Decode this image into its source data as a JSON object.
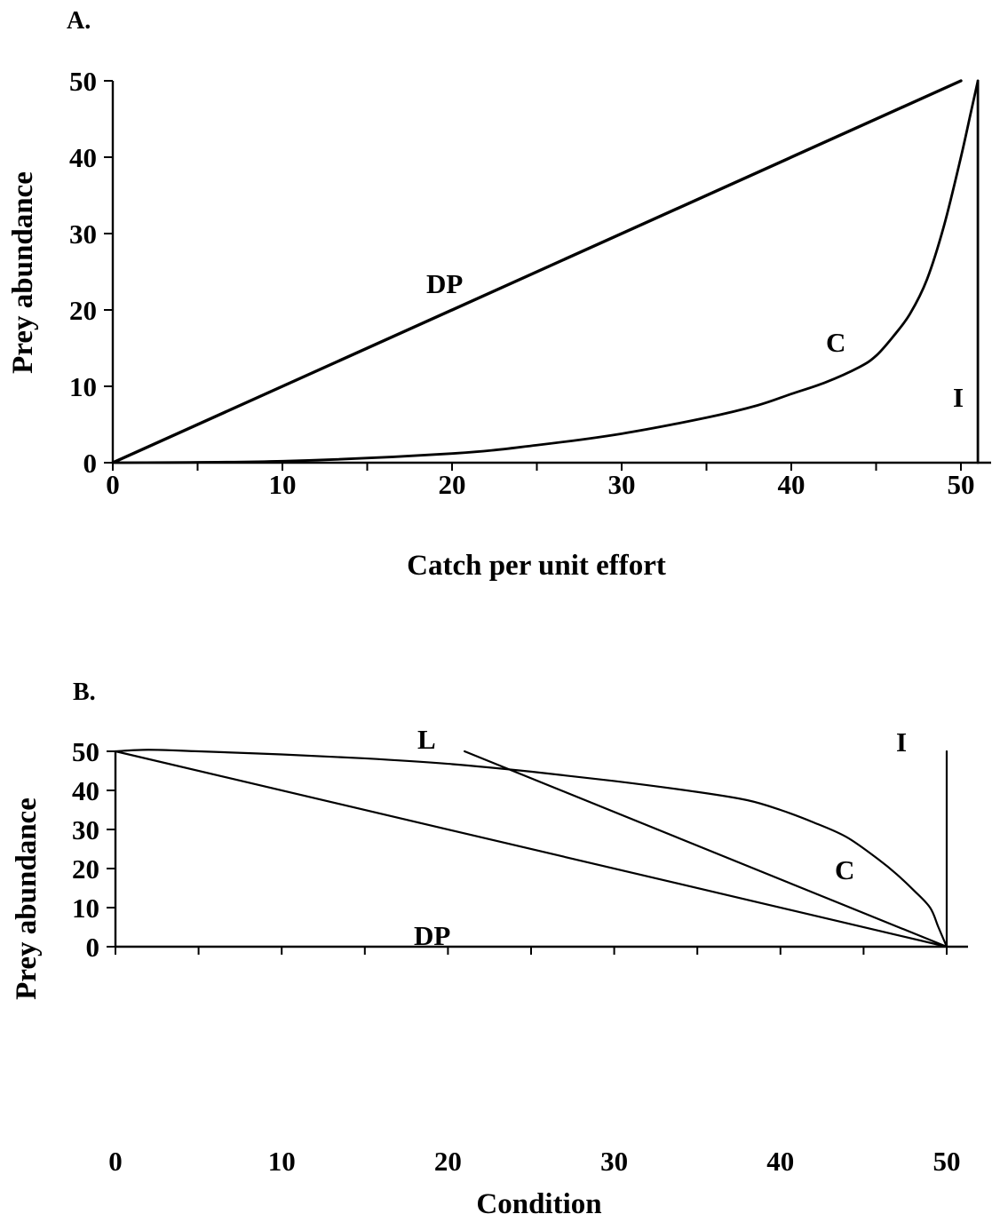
{
  "chart_data": [
    {
      "type": "line",
      "panel_label": "A.",
      "xlabel": "Catch per unit effort",
      "ylabel": "Prey abundance",
      "xlim": [
        0,
        50
      ],
      "ylim": [
        0,
        50
      ],
      "xticks": [
        0,
        10,
        20,
        30,
        40,
        50
      ],
      "yticks": [
        0,
        10,
        20,
        30,
        40,
        50
      ],
      "grid": false,
      "series": [
        {
          "name": "DP",
          "x": [
            0,
            50
          ],
          "y": [
            0,
            50
          ]
        },
        {
          "name": "C",
          "x": [
            0,
            10,
            20,
            25,
            30,
            35,
            38,
            40,
            42,
            44,
            45,
            46,
            47,
            48,
            49,
            50,
            50.6,
            51
          ],
          "y": [
            0,
            0.2,
            1.2,
            2.3,
            3.8,
            5.9,
            7.5,
            9.0,
            10.5,
            12.5,
            14.0,
            16.5,
            19.5,
            24.0,
            31.0,
            40.0,
            46.0,
            50.0
          ]
        },
        {
          "name": "I",
          "x": [
            51,
            51
          ],
          "y": [
            0,
            50
          ]
        }
      ]
    },
    {
      "type": "line",
      "panel_label": "B.",
      "xlabel": "Condition",
      "ylabel": "Prey abundance",
      "xlim": [
        0,
        50
      ],
      "ylim": [
        0,
        50
      ],
      "xticks": [
        0,
        10,
        20,
        30,
        40,
        50
      ],
      "yticks": [
        0,
        10,
        20,
        30,
        40,
        50
      ],
      "grid": false,
      "series": [
        {
          "name": "L",
          "x": [
            21,
            50
          ],
          "y": [
            50,
            0
          ]
        },
        {
          "name": "I",
          "x": [
            50,
            50
          ],
          "y": [
            0,
            50
          ]
        },
        {
          "name": "C",
          "x": [
            0,
            2,
            5,
            10,
            15,
            20,
            25,
            30,
            35,
            38,
            40,
            42,
            44,
            46,
            47,
            48,
            49,
            49.5,
            50
          ],
          "y": [
            50,
            50.4,
            50.0,
            49.2,
            48.2,
            46.8,
            44.8,
            42.4,
            39.6,
            37.5,
            35.0,
            31.8,
            28.0,
            22.0,
            18.5,
            14.5,
            10.0,
            5.0,
            0
          ]
        },
        {
          "name": "DP",
          "x": [
            0,
            50
          ],
          "y": [
            50,
            0
          ]
        }
      ]
    }
  ]
}
